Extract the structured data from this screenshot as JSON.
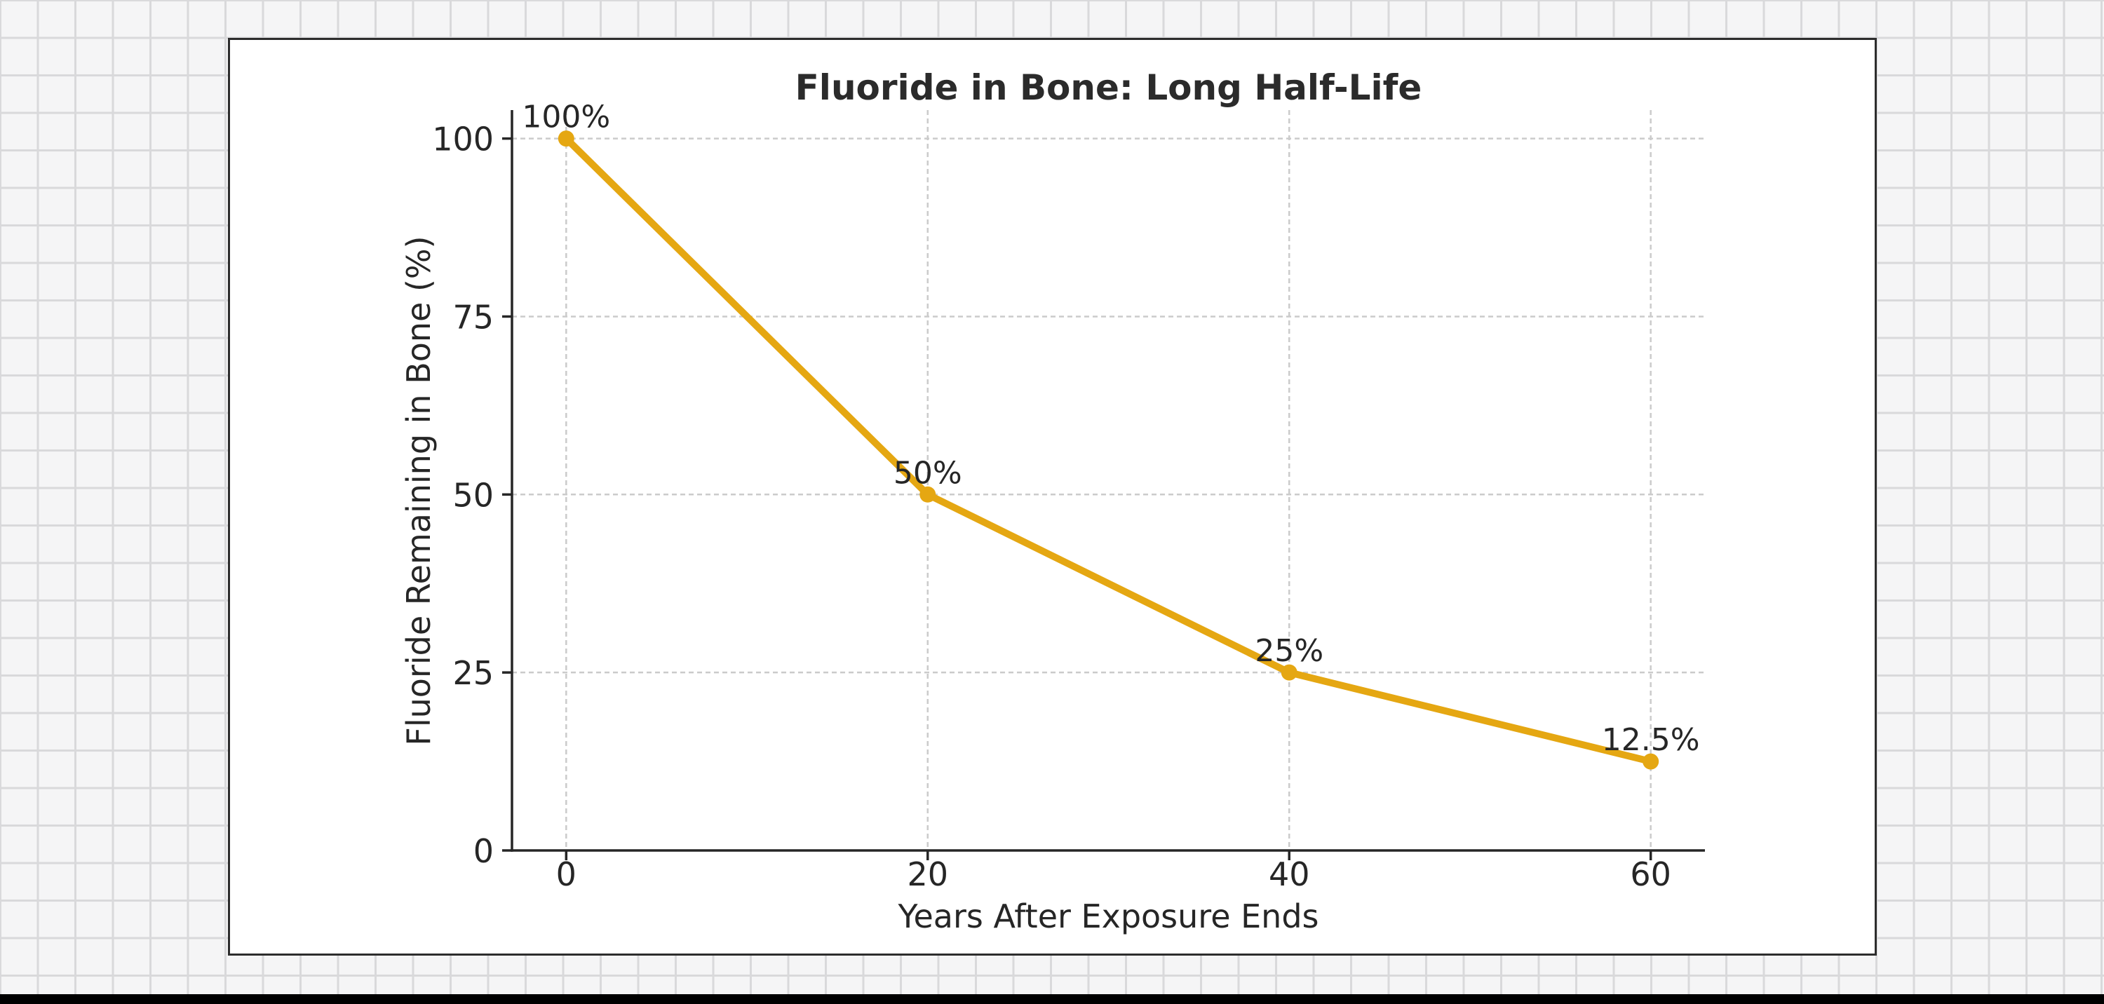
{
  "chart_data": {
    "type": "line",
    "title": "Fluoride in Bone: Long Half-Life",
    "xlabel": "Years After Exposure Ends",
    "ylabel": "Fluoride Remaining in Bone (%)",
    "x": [
      0,
      20,
      40,
      60
    ],
    "y": [
      100,
      50,
      25,
      12.5
    ],
    "point_labels": [
      "100%",
      "50%",
      "25%",
      "12.5%"
    ],
    "xticks": {
      "values": [
        0,
        20,
        40,
        60
      ],
      "labels": [
        "0",
        "20",
        "40",
        "60"
      ]
    },
    "yticks": {
      "values": [
        0,
        25,
        50,
        75,
        100
      ],
      "labels": [
        "0",
        "25",
        "50",
        "75",
        "100"
      ]
    },
    "xlim": [
      -3,
      63
    ],
    "ylim": [
      0,
      104
    ],
    "grid": true,
    "grid_style": "dashed",
    "legend": false,
    "colors": {
      "line": "#E5A712",
      "marker": "#E5A712",
      "text": "#262626",
      "title": "#2b2b2b",
      "grid": "#cbcbcb",
      "spine": "#262626"
    }
  }
}
